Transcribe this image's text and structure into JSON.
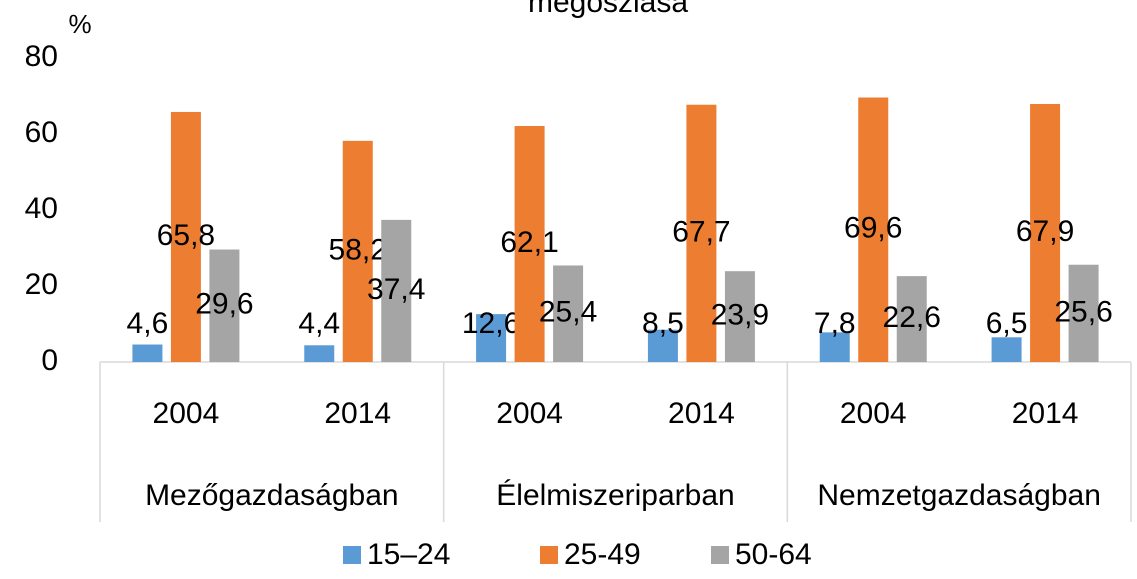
{
  "chart_data": {
    "type": "bar",
    "title": "megoszlása",
    "y_label": "%",
    "categories": [
      "2004",
      "2014",
      "2004",
      "2014",
      "2004",
      "2014"
    ],
    "category_groups": [
      "Mezőgazdaságban",
      "Élelmiszeriparban",
      "Nemzetgazdaságban"
    ],
    "series": [
      {
        "name": "15–24",
        "color": "#5b9bd5",
        "values": [
          4.6,
          4.4,
          12.6,
          8.5,
          7.8,
          6.5
        ],
        "value_labels": [
          "4,6",
          "4,4",
          "12,6",
          "8,5",
          "7,8",
          "6,5"
        ]
      },
      {
        "name": "25-49",
        "color": "#ed7d31",
        "values": [
          65.8,
          58.2,
          62.1,
          67.7,
          69.6,
          67.9
        ],
        "value_labels": [
          "65,8",
          "58,2",
          "62,1",
          "67,7",
          "69,6",
          "67,9"
        ]
      },
      {
        "name": "50-64",
        "color": "#a5a5a5",
        "values": [
          29.6,
          37.4,
          25.4,
          23.9,
          22.6,
          25.6
        ],
        "value_labels": [
          "29,6",
          "37,4",
          "25,4",
          "23,9",
          "22,6",
          "25,6"
        ]
      }
    ],
    "ylim": [
      0,
      80
    ],
    "yticks": [
      0,
      20,
      40,
      60,
      80
    ],
    "grid": false,
    "legend": "bottom"
  }
}
